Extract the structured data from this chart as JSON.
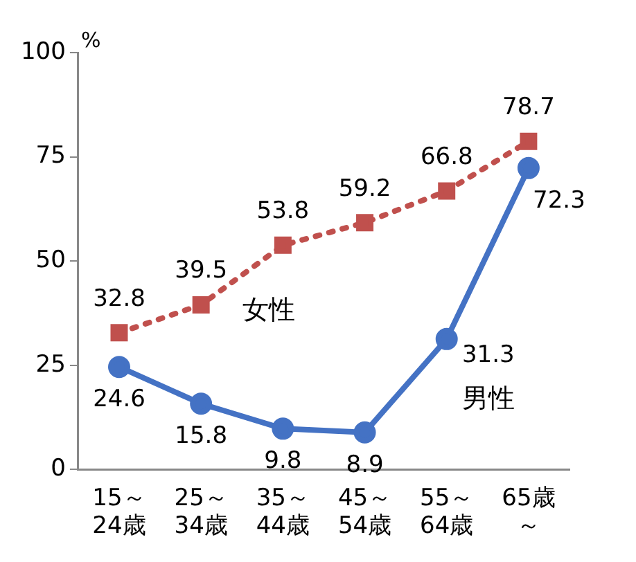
{
  "chart_data": {
    "type": "line",
    "ylabel": "%",
    "categories": [
      "15～24歳",
      "25～34歳",
      "35～44歳",
      "45～54歳",
      "55～64歳",
      "65歳～"
    ],
    "series": [
      {
        "name": "女性",
        "color": "#c0504d",
        "values": [
          32.8,
          39.5,
          53.8,
          59.2,
          66.8,
          78.7
        ],
        "marker": "square",
        "line_style": "dotted"
      },
      {
        "name": "男性",
        "color": "#4472c4",
        "values": [
          24.6,
          15.8,
          9.8,
          8.9,
          31.3,
          72.3
        ],
        "marker": "circle",
        "line_style": "solid"
      }
    ],
    "ylim": [
      0,
      100
    ],
    "yticks": [
      0,
      25,
      50,
      75,
      100
    ],
    "grid": false,
    "legend": false,
    "data_labels": true
  }
}
